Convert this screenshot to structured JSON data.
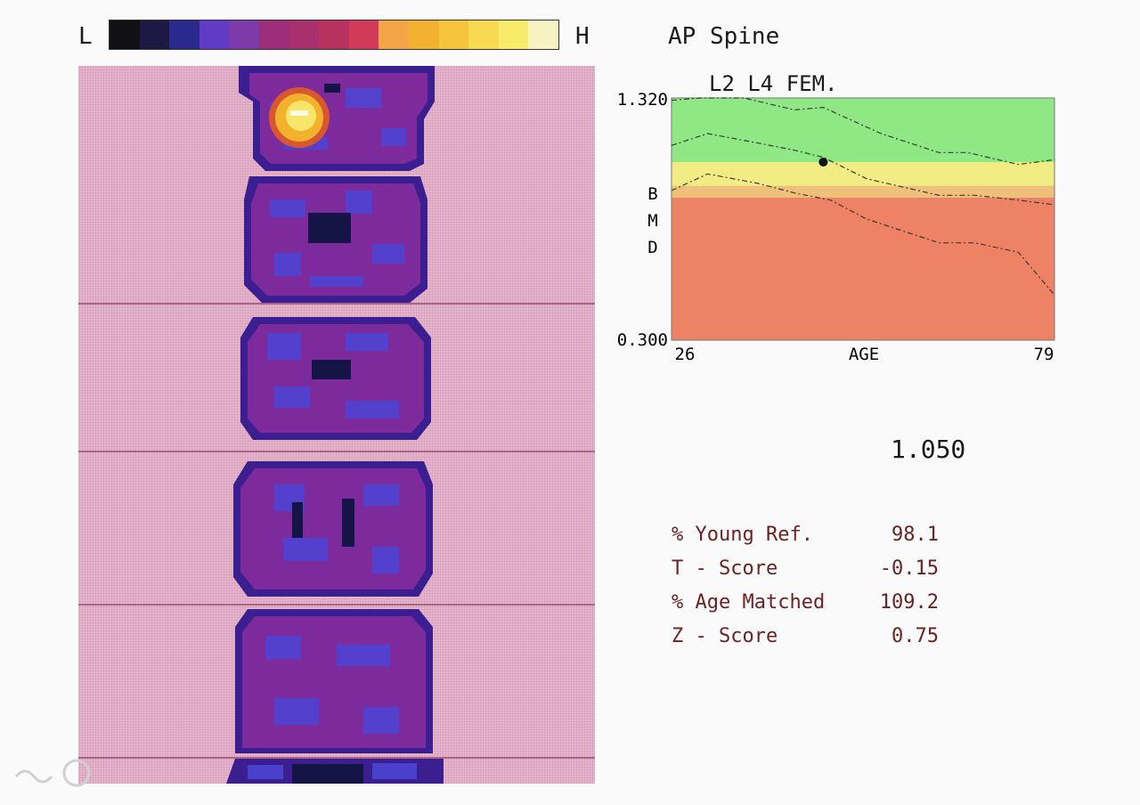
{
  "colorbar": {
    "low_label": "L",
    "high_label": "H",
    "colors": [
      "#111015",
      "#1d1844",
      "#2a2a8e",
      "#5f3bc6",
      "#7e3aa8",
      "#9c2e7a",
      "#a8306d",
      "#b8325f",
      "#d23a59",
      "#f2a446",
      "#f3b132",
      "#f6c43a",
      "#f7d952",
      "#f8ea6a",
      "#f6f3c2"
    ]
  },
  "region_title": "AP Spine",
  "chart_data": {
    "type": "line",
    "title": "L2 L4 FEM.",
    "ylabel": "BMD",
    "xlabel": "AGE",
    "ylim": [
      0.3,
      1.32
    ],
    "xlim": [
      26,
      79
    ],
    "ytick_labels": [
      "1.320",
      "0.300"
    ],
    "xtick_labels": [
      "26",
      "79"
    ],
    "zones": [
      {
        "from": 1.05,
        "to": 1.32,
        "color": "#8fe884"
      },
      {
        "from": 0.95,
        "to": 1.05,
        "color": "#f2ec85"
      },
      {
        "from": 0.9,
        "to": 0.95,
        "color": "#efc07a"
      },
      {
        "from": 0.3,
        "to": 0.9,
        "color": "#ee8264"
      }
    ],
    "series": [
      {
        "x": [
          26,
          30,
          36,
          43,
          47,
          55,
          63,
          67,
          74,
          79
        ],
        "values": [
          1.31,
          1.33,
          1.32,
          1.27,
          1.28,
          1.17,
          1.09,
          1.09,
          1.04,
          1.06
        ]
      },
      {
        "x": [
          26,
          31,
          38,
          43,
          47,
          53,
          63,
          68,
          74,
          79
        ],
        "values": [
          1.12,
          1.17,
          1.13,
          1.1,
          1.07,
          0.98,
          0.91,
          0.91,
          0.89,
          0.87
        ]
      },
      {
        "x": [
          26,
          31,
          38,
          43,
          48,
          53,
          63,
          68,
          74,
          79
        ],
        "values": [
          0.93,
          1.0,
          0.96,
          0.92,
          0.89,
          0.81,
          0.71,
          0.71,
          0.67,
          0.49
        ]
      }
    ],
    "patient_point": {
      "x": 47,
      "y": 1.05
    }
  },
  "bmd_value": "1.050",
  "results": [
    {
      "label": "% Young Ref.",
      "value": "98.1"
    },
    {
      "label": "T - Score",
      "value": "-0.15"
    },
    {
      "label": "% Age Matched",
      "value": "109.2"
    },
    {
      "label": "Z - Score",
      "value": "0.75"
    }
  ]
}
